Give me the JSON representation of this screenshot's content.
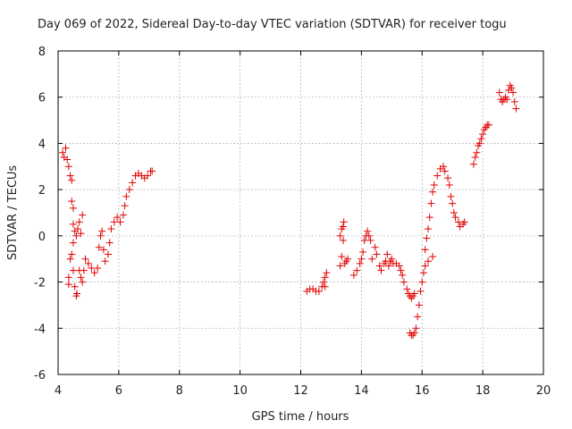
{
  "chart_data": {
    "type": "scatter",
    "title": "Day 069 of 2022, Sidereal Day-to-day VTEC variation (SDTVAR) for receiver togu",
    "xlabel": "GPS time / hours",
    "ylabel": "SDTVAR / TECUs",
    "xlim": [
      4,
      20
    ],
    "ylim": [
      -6,
      8
    ],
    "xticks": [
      4,
      6,
      8,
      10,
      12,
      14,
      16,
      18,
      20
    ],
    "yticks": [
      -6,
      -4,
      -2,
      0,
      2,
      4,
      6,
      8
    ],
    "grid": true,
    "marker": "+",
    "color": "#e00000",
    "series": [
      {
        "name": "SDTVAR",
        "points": [
          [
            4.15,
            3.6
          ],
          [
            4.2,
            3.4
          ],
          [
            4.25,
            3.8
          ],
          [
            4.3,
            3.3
          ],
          [
            4.35,
            3.0
          ],
          [
            4.4,
            2.6
          ],
          [
            4.45,
            2.4
          ],
          [
            4.45,
            1.5
          ],
          [
            4.5,
            1.2
          ],
          [
            4.5,
            0.5
          ],
          [
            4.55,
            0.2
          ],
          [
            4.5,
            -0.3
          ],
          [
            4.45,
            -0.8
          ],
          [
            4.4,
            -1.0
          ],
          [
            4.35,
            -1.8
          ],
          [
            4.35,
            -2.1
          ],
          [
            4.5,
            -1.5
          ],
          [
            4.55,
            -2.2
          ],
          [
            4.6,
            -2.6
          ],
          [
            4.62,
            -2.5
          ],
          [
            4.6,
            0.0
          ],
          [
            4.65,
            0.3
          ],
          [
            4.7,
            0.6
          ],
          [
            4.75,
            0.1
          ],
          [
            4.8,
            0.9
          ],
          [
            4.7,
            -1.5
          ],
          [
            4.75,
            -1.8
          ],
          [
            4.8,
            -2.0
          ],
          [
            4.85,
            -1.5
          ],
          [
            4.9,
            -1.0
          ],
          [
            5.0,
            -1.2
          ],
          [
            5.1,
            -1.4
          ],
          [
            5.2,
            -1.6
          ],
          [
            5.3,
            -1.4
          ],
          [
            5.35,
            -0.5
          ],
          [
            5.4,
            0.0
          ],
          [
            5.45,
            0.2
          ],
          [
            5.5,
            -0.6
          ],
          [
            5.55,
            -1.1
          ],
          [
            5.65,
            -0.8
          ],
          [
            5.7,
            -0.3
          ],
          [
            5.75,
            0.3
          ],
          [
            5.85,
            0.6
          ],
          [
            5.95,
            0.8
          ],
          [
            6.05,
            0.6
          ],
          [
            6.15,
            0.9
          ],
          [
            6.2,
            1.3
          ],
          [
            6.25,
            1.7
          ],
          [
            6.35,
            2.0
          ],
          [
            6.45,
            2.3
          ],
          [
            6.55,
            2.6
          ],
          [
            6.65,
            2.7
          ],
          [
            6.75,
            2.6
          ],
          [
            6.85,
            2.5
          ],
          [
            6.95,
            2.6
          ],
          [
            7.05,
            2.8
          ],
          [
            7.1,
            2.8
          ],
          [
            12.2,
            -2.4
          ],
          [
            12.3,
            -2.3
          ],
          [
            12.4,
            -2.3
          ],
          [
            12.5,
            -2.4
          ],
          [
            12.6,
            -2.4
          ],
          [
            12.7,
            -2.2
          ],
          [
            12.75,
            -2.0
          ],
          [
            12.8,
            -1.8
          ],
          [
            12.85,
            -1.6
          ],
          [
            12.8,
            -2.2
          ],
          [
            13.3,
            -1.3
          ],
          [
            13.35,
            -0.9
          ],
          [
            13.3,
            0.0
          ],
          [
            13.35,
            0.3
          ],
          [
            13.4,
            -0.2
          ],
          [
            13.4,
            0.4
          ],
          [
            13.42,
            0.6
          ],
          [
            13.45,
            -1.2
          ],
          [
            13.5,
            -1.1
          ],
          [
            13.55,
            -1.0
          ],
          [
            13.75,
            -1.7
          ],
          [
            13.85,
            -1.5
          ],
          [
            13.95,
            -1.2
          ],
          [
            14.0,
            -1.0
          ],
          [
            14.05,
            -0.7
          ],
          [
            14.1,
            -0.2
          ],
          [
            14.15,
            0.0
          ],
          [
            14.2,
            0.2
          ],
          [
            14.25,
            0.0
          ],
          [
            14.3,
            -0.2
          ],
          [
            14.35,
            -1.0
          ],
          [
            14.45,
            -0.5
          ],
          [
            14.5,
            -0.8
          ],
          [
            14.6,
            -1.3
          ],
          [
            14.65,
            -1.5
          ],
          [
            14.75,
            -1.2
          ],
          [
            14.8,
            -1.1
          ],
          [
            14.85,
            -0.8
          ],
          [
            14.9,
            -1.3
          ],
          [
            14.95,
            -1.1
          ],
          [
            15.0,
            -1.0
          ],
          [
            15.05,
            -1.2
          ],
          [
            15.15,
            -1.2
          ],
          [
            15.25,
            -1.3
          ],
          [
            15.3,
            -1.5
          ],
          [
            15.35,
            -1.7
          ],
          [
            15.4,
            -2.0
          ],
          [
            15.5,
            -2.3
          ],
          [
            15.55,
            -2.5
          ],
          [
            15.6,
            -2.6
          ],
          [
            15.65,
            -2.7
          ],
          [
            15.7,
            -2.6
          ],
          [
            15.75,
            -2.5
          ],
          [
            15.6,
            -4.2
          ],
          [
            15.65,
            -4.3
          ],
          [
            15.7,
            -4.3
          ],
          [
            15.75,
            -4.2
          ],
          [
            15.8,
            -4.0
          ],
          [
            15.85,
            -3.5
          ],
          [
            15.9,
            -3.0
          ],
          [
            15.95,
            -2.4
          ],
          [
            16.0,
            -2.0
          ],
          [
            16.05,
            -1.6
          ],
          [
            16.1,
            -1.3
          ],
          [
            16.2,
            -1.1
          ],
          [
            16.35,
            -0.9
          ],
          [
            16.1,
            -0.6
          ],
          [
            16.15,
            -0.1
          ],
          [
            16.2,
            0.3
          ],
          [
            16.25,
            0.8
          ],
          [
            16.3,
            1.4
          ],
          [
            16.35,
            1.9
          ],
          [
            16.4,
            2.2
          ],
          [
            16.5,
            2.6
          ],
          [
            16.6,
            2.9
          ],
          [
            16.7,
            3.0
          ],
          [
            16.75,
            2.8
          ],
          [
            16.85,
            2.5
          ],
          [
            16.9,
            2.2
          ],
          [
            16.95,
            1.7
          ],
          [
            17.0,
            1.4
          ],
          [
            17.05,
            1.0
          ],
          [
            17.1,
            0.8
          ],
          [
            17.2,
            0.6
          ],
          [
            17.25,
            0.4
          ],
          [
            17.35,
            0.5
          ],
          [
            17.4,
            0.6
          ],
          [
            17.7,
            3.1
          ],
          [
            17.75,
            3.4
          ],
          [
            17.8,
            3.6
          ],
          [
            17.85,
            3.9
          ],
          [
            17.9,
            4.0
          ],
          [
            17.95,
            4.2
          ],
          [
            18.0,
            4.4
          ],
          [
            18.05,
            4.6
          ],
          [
            18.1,
            4.7
          ],
          [
            18.15,
            4.8
          ],
          [
            18.2,
            4.8
          ],
          [
            18.55,
            6.2
          ],
          [
            18.6,
            5.9
          ],
          [
            18.65,
            5.8
          ],
          [
            18.7,
            5.9
          ],
          [
            18.75,
            6.0
          ],
          [
            18.8,
            5.9
          ],
          [
            18.85,
            6.3
          ],
          [
            18.9,
            6.5
          ],
          [
            18.95,
            6.4
          ],
          [
            19.0,
            6.2
          ],
          [
            19.05,
            5.8
          ],
          [
            19.1,
            5.5
          ]
        ]
      }
    ]
  }
}
